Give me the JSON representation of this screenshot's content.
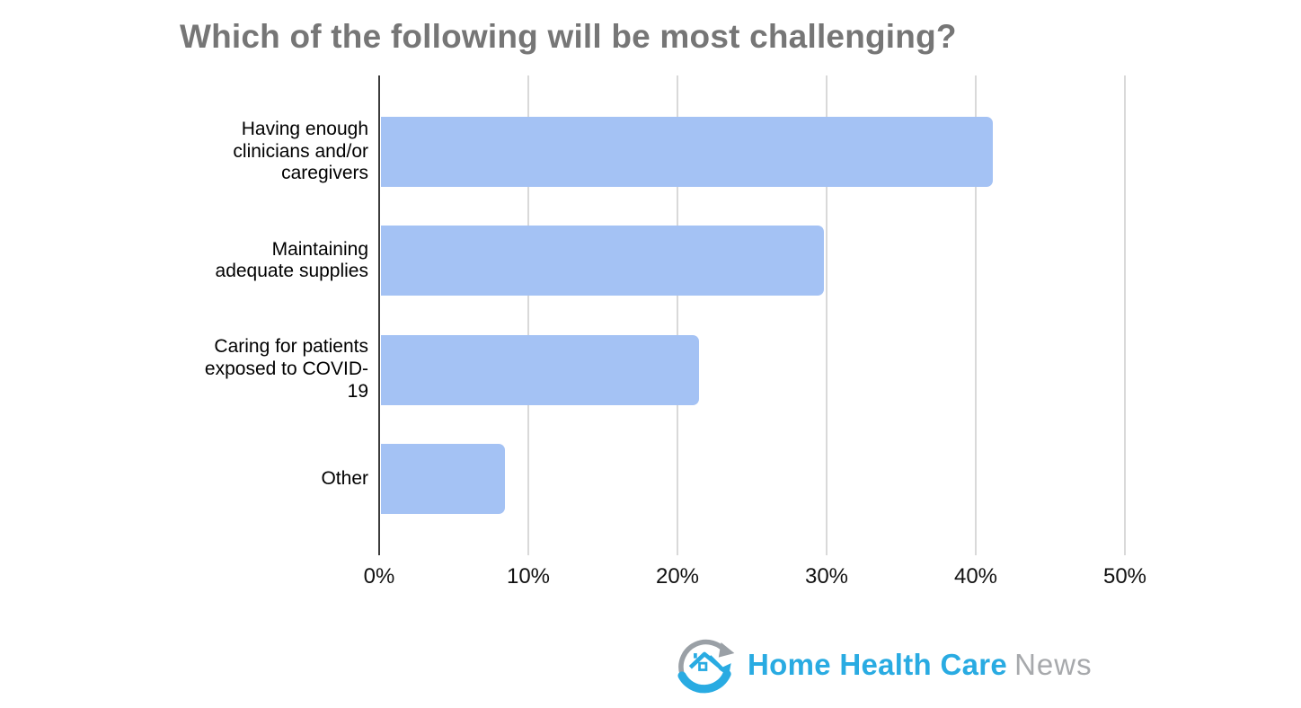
{
  "chart_data": {
    "type": "bar",
    "orientation": "horizontal",
    "title": "Which of the following will be most challenging?",
    "xlabel": "",
    "ylabel": "",
    "categories": [
      "Having enough clinicians and/or caregivers",
      "Maintaining adequate supplies",
      "Caring for patients exposed to COVID-19",
      "Other"
    ],
    "values": [
      41,
      29.7,
      21.3,
      8.3
    ],
    "value_suffix": "%",
    "x_ticks": [
      "0%",
      "10%",
      "20%",
      "30%",
      "40%",
      "50%"
    ],
    "x_tick_values": [
      0,
      10,
      20,
      30,
      40,
      50
    ],
    "xlim": [
      0,
      55
    ],
    "grid": true,
    "legend": "none",
    "bar_color": "#a4c2f4",
    "axis_line_color": "#3b3b3b",
    "gridline_color": "#d9d9d9",
    "title_color": "#767676"
  },
  "branding": {
    "logo_text_primary": "Home Health Care",
    "logo_text_secondary": "News",
    "logo_primary_color": "#29abe2",
    "logo_secondary_color": "#a7a9ac",
    "logo_icon": "house-with-circular-arrows-icon"
  }
}
